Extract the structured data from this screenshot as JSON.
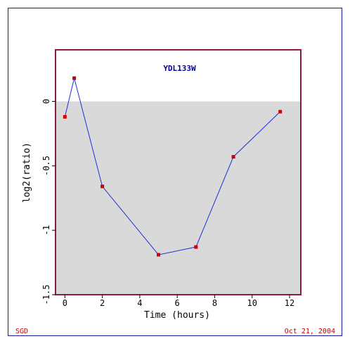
{
  "footer": {
    "left": "SGD",
    "right": "Oct 21, 2004"
  },
  "colors": {
    "frame": "#1a1aa0",
    "plot_border": "#8b1a4a",
    "shade": "#d9d9d9",
    "line": "#1f2fd6",
    "marker": "#d40000",
    "title": "#0000a0",
    "footer": "#c00000"
  },
  "chart_data": {
    "type": "line",
    "title": "YDL133W",
    "xlabel": "Time (hours)",
    "ylabel": "log2(ratio)",
    "xlim": [
      -0.5,
      12.6
    ],
    "ylim": [
      -1.5,
      0.4
    ],
    "xticks": [
      0,
      2,
      4,
      6,
      8,
      10,
      12
    ],
    "yticks": [
      0,
      -0.5,
      -1,
      -1.5
    ],
    "ytick_labels": [
      "0",
      "-0.5",
      "-1",
      "-1.5"
    ],
    "shaded_region": "below 0",
    "series": [
      {
        "x": [
          0,
          0.5,
          2,
          5,
          7,
          9,
          11.5
        ],
        "y": [
          -0.12,
          0.18,
          -0.66,
          -1.19,
          -1.13,
          -0.43,
          -0.08
        ]
      }
    ]
  }
}
